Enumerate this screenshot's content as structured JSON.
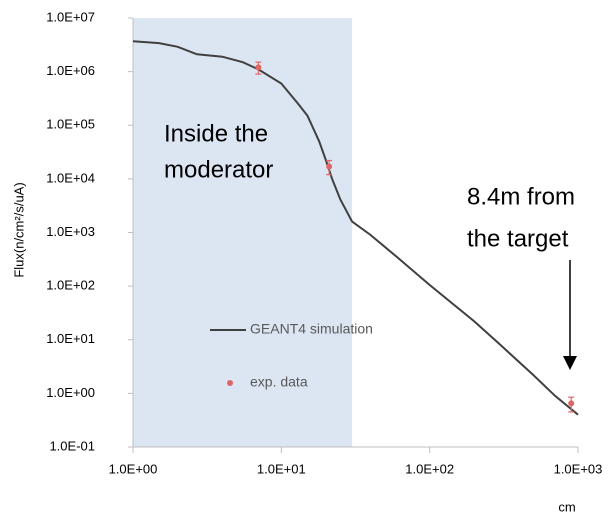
{
  "chart_data": {
    "type": "line",
    "y_label": "Flux(n/cm²/s/uA)",
    "x_label": "cm",
    "log_x": true,
    "log_y": true,
    "xlim": [
      1,
      1000
    ],
    "ylim": [
      0.1,
      10000000
    ],
    "xticks": [
      {
        "value": 1,
        "label": "1.0E+00"
      },
      {
        "value": 10,
        "label": "1.0E+01"
      },
      {
        "value": 100,
        "label": "1.0E+02"
      },
      {
        "value": 1000,
        "label": "1.0E+03"
      }
    ],
    "yticks": [
      {
        "value": 0.1,
        "label": "1.0E-01"
      },
      {
        "value": 1,
        "label": "1.0E+00"
      },
      {
        "value": 10,
        "label": "1.0E+01"
      },
      {
        "value": 100,
        "label": "1.0E+02"
      },
      {
        "value": 1000,
        "label": "1.0E+03"
      },
      {
        "value": 10000,
        "label": "1.0E+04"
      },
      {
        "value": 100000,
        "label": "1.0E+05"
      },
      {
        "value": 1000000,
        "label": "1.0E+06"
      },
      {
        "value": 10000000,
        "label": "1.0E+07"
      }
    ],
    "shaded_region": {
      "xlim": [
        1,
        30
      ],
      "color": "#dce6f2"
    },
    "annotations": [
      "Inside the",
      "moderator",
      "8.4m from",
      "the target"
    ],
    "series": [
      {
        "name": "GEANT4 simulation",
        "type": "line",
        "color": "#404040",
        "x": [
          1,
          1.5,
          2,
          2.7,
          4,
          5.5,
          7,
          10,
          13,
          15,
          18,
          20,
          22,
          25,
          30,
          40,
          60,
          100,
          200,
          300,
          500,
          700,
          1000
        ],
        "values": [
          3700000,
          3400000,
          2900000,
          2100000,
          1900000,
          1500000,
          1100000,
          600000,
          250000,
          150000,
          50000,
          22000,
          10000,
          4100,
          1600,
          900,
          350,
          105,
          22,
          8,
          2.2,
          0.9,
          0.4
        ]
      },
      {
        "name": "exp. data",
        "type": "scatter",
        "color": "#e06666",
        "x": [
          7,
          21,
          900
        ],
        "values": [
          1200000,
          17000,
          0.65
        ],
        "errors": [
          300000,
          5000,
          0.2
        ]
      }
    ]
  }
}
